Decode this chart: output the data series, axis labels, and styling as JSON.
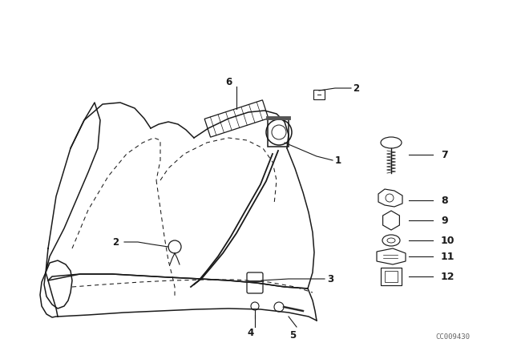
{
  "bg_color": "#ffffff",
  "line_color": "#1a1a1a",
  "watermark": "CC009430",
  "figsize": [
    6.4,
    4.48
  ],
  "dpi": 100
}
